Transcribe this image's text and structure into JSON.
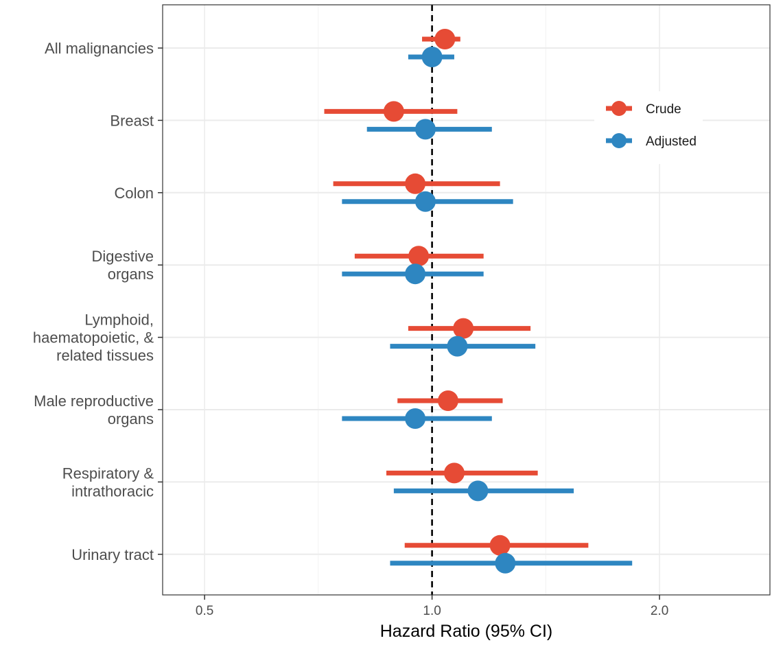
{
  "chart_data": {
    "type": "forest",
    "title": "",
    "xlabel": "Hazard Ratio (95% CI)",
    "ylabel": "",
    "x_scale": "log",
    "xlim": [
      0.44,
      2.8
    ],
    "x_ticks": [
      0.5,
      1.0,
      2.0
    ],
    "x_tick_labels": [
      "0.5",
      "1.0",
      "2.0"
    ],
    "x_minor_ticks": [
      0.707,
      1.414,
      2.828
    ],
    "reference_line": 1.0,
    "grid": true,
    "legend_position": "right-inside-top",
    "categories": [
      [
        "All malignancies"
      ],
      [
        "Breast"
      ],
      [
        "Colon"
      ],
      [
        "Digestive",
        "organs"
      ],
      [
        "Lymphoid,",
        "haematopoietic, &",
        "related tissues"
      ],
      [
        "Male reproductive",
        "organs"
      ],
      [
        "Respiratory &",
        "intrathoracic"
      ],
      [
        "Urinary tract"
      ]
    ],
    "series": [
      {
        "name": "Crude",
        "color": "#E64B35",
        "hr": [
          1.04,
          0.89,
          0.95,
          0.96,
          1.1,
          1.05,
          1.07,
          1.23
        ],
        "lower": [
          0.97,
          0.72,
          0.74,
          0.79,
          0.93,
          0.9,
          0.87,
          0.92
        ],
        "upper": [
          1.09,
          1.08,
          1.23,
          1.17,
          1.35,
          1.24,
          1.38,
          1.61
        ]
      },
      {
        "name": "Adjusted",
        "color": "#2E86C1",
        "hr": [
          1.0,
          0.98,
          0.98,
          0.95,
          1.08,
          0.95,
          1.15,
          1.25
        ],
        "lower": [
          0.93,
          0.82,
          0.76,
          0.76,
          0.88,
          0.76,
          0.89,
          0.88
        ],
        "upper": [
          1.07,
          1.2,
          1.28,
          1.17,
          1.37,
          1.2,
          1.54,
          1.84
        ]
      }
    ]
  }
}
